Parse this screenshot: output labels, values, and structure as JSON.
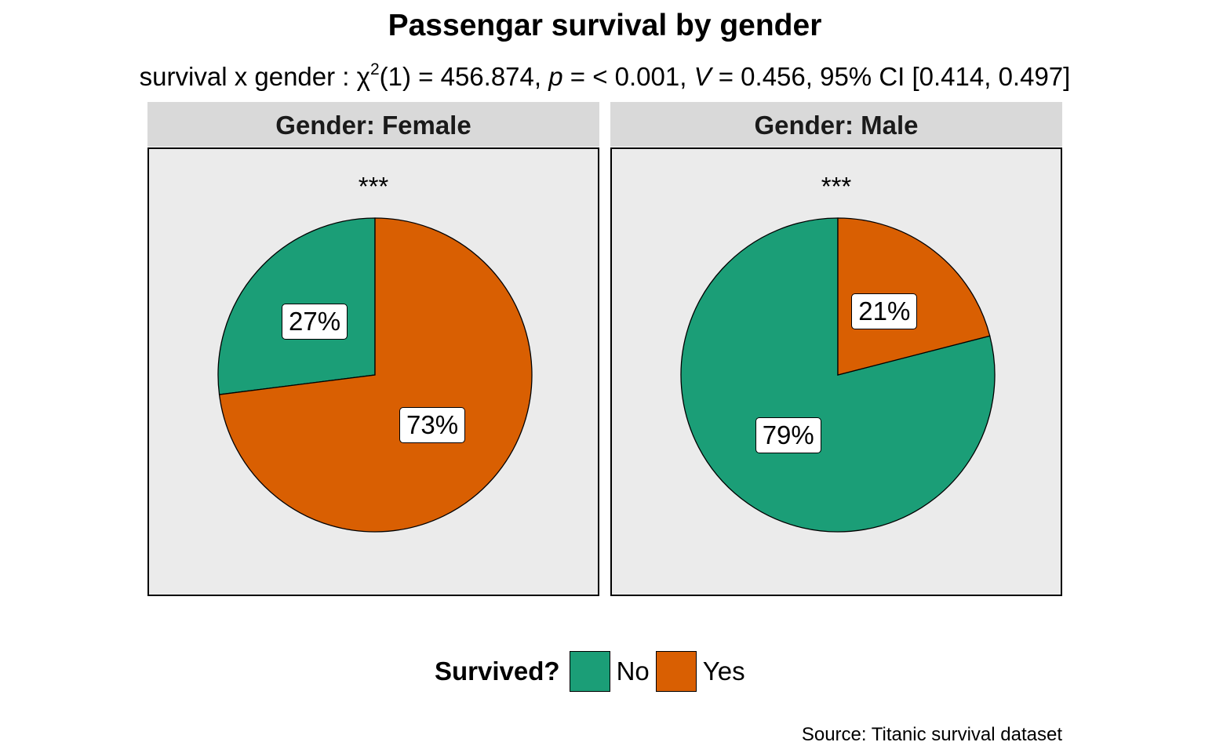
{
  "chart_data": {
    "type": "pie",
    "title": "Passengar survival by gender",
    "subtitle": {
      "prefix": "survival x gender : ",
      "stat_symbol": "χ",
      "stat_exponent": "2",
      "df": "(1) = 456.874, ",
      "p_symbol": "p",
      "p_text": " = < 0.001, ",
      "v_symbol": "V",
      "v_text": " = 0.456, 95% CI [0.414, 0.497]"
    },
    "legend": {
      "title": "Survived?",
      "position": "bottom",
      "entries": [
        {
          "name": "No",
          "color": "#1b9e77"
        },
        {
          "name": "Yes",
          "color": "#d95f02"
        }
      ]
    },
    "panels": [
      {
        "strip": "Gender: Female",
        "significance": "***",
        "slices": [
          {
            "category": "No",
            "value": 27,
            "label": "27%"
          },
          {
            "category": "Yes",
            "value": 73,
            "label": "73%"
          }
        ]
      },
      {
        "strip": "Gender: Male",
        "significance": "***",
        "slices": [
          {
            "category": "No",
            "value": 79,
            "label": "79%"
          },
          {
            "category": "Yes",
            "value": 21,
            "label": "21%"
          }
        ]
      }
    ],
    "caption": "Source: Titanic survival dataset"
  }
}
